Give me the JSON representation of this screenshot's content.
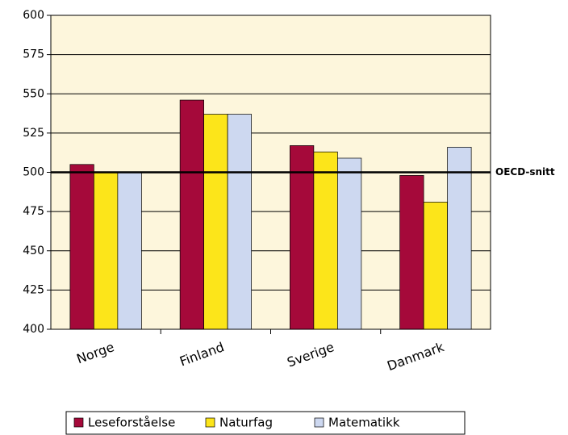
{
  "chart_data": {
    "type": "bar",
    "categories": [
      "Norge",
      "Finland",
      "Sverige",
      "Danmark"
    ],
    "series": [
      {
        "name": "Leseforståelse",
        "color": "#a5093a",
        "values": [
          505,
          546,
          517,
          498
        ]
      },
      {
        "name": "Naturfag",
        "color": "#fce51a",
        "values": [
          500,
          537,
          513,
          481
        ]
      },
      {
        "name": "Matematikk",
        "color": "#cdd8f0",
        "values": [
          500,
          537,
          509,
          516
        ]
      }
    ],
    "ylim": [
      400,
      600
    ],
    "yticks": [
      400,
      425,
      450,
      475,
      500,
      525,
      550,
      575,
      600
    ],
    "grid": true,
    "reference_line": {
      "value": 500,
      "label": "OECD-snitt"
    },
    "legend": "bottom"
  }
}
